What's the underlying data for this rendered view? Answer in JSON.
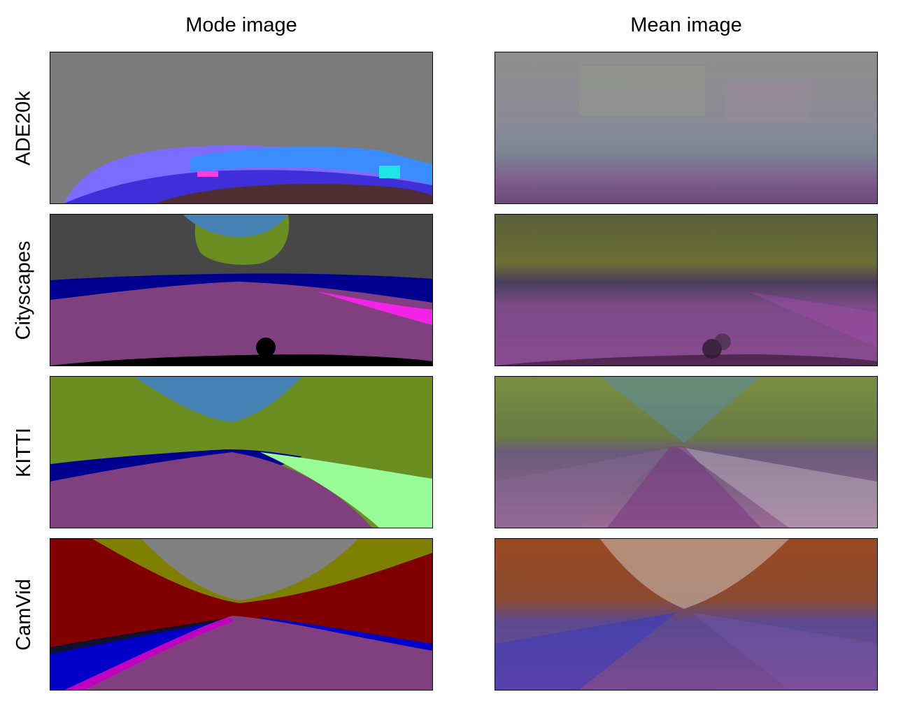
{
  "columns": [
    "Mode image",
    "Mean image"
  ],
  "rows": [
    {
      "label": "ADE20k"
    },
    {
      "label": "Cityscapes"
    },
    {
      "label": "KITTI"
    },
    {
      "label": "CamVid"
    }
  ]
}
